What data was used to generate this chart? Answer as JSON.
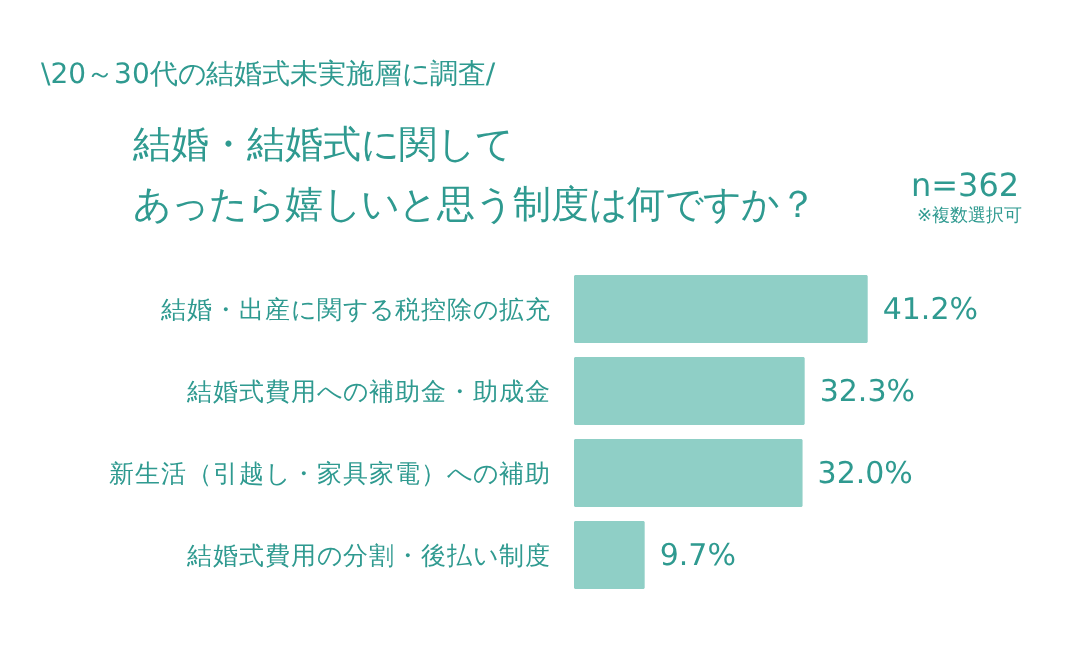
{
  "chart_data": {
    "type": "bar",
    "orientation": "horizontal",
    "subtitle": "\\20～30代の結婚式未実施層に調査/",
    "title": "結婚・結婚式に関してあったら嬉しいと思う制度は何ですか？",
    "annotations": [
      "n=362",
      "※複数選択可"
    ],
    "categories": [
      "結婚・出産に関する税控除の拡充",
      "結婚式費用への補助金・助成金",
      "新生活（引越し・家具家電）への補助",
      "結婚式費用の分割・後払い制度"
    ],
    "values": [
      41.2,
      32.3,
      32.0,
      9.7
    ],
    "value_labels": [
      "41.2%",
      "32.3%",
      "32.0%",
      "9.7%"
    ],
    "color": "#8fcfc6"
  }
}
